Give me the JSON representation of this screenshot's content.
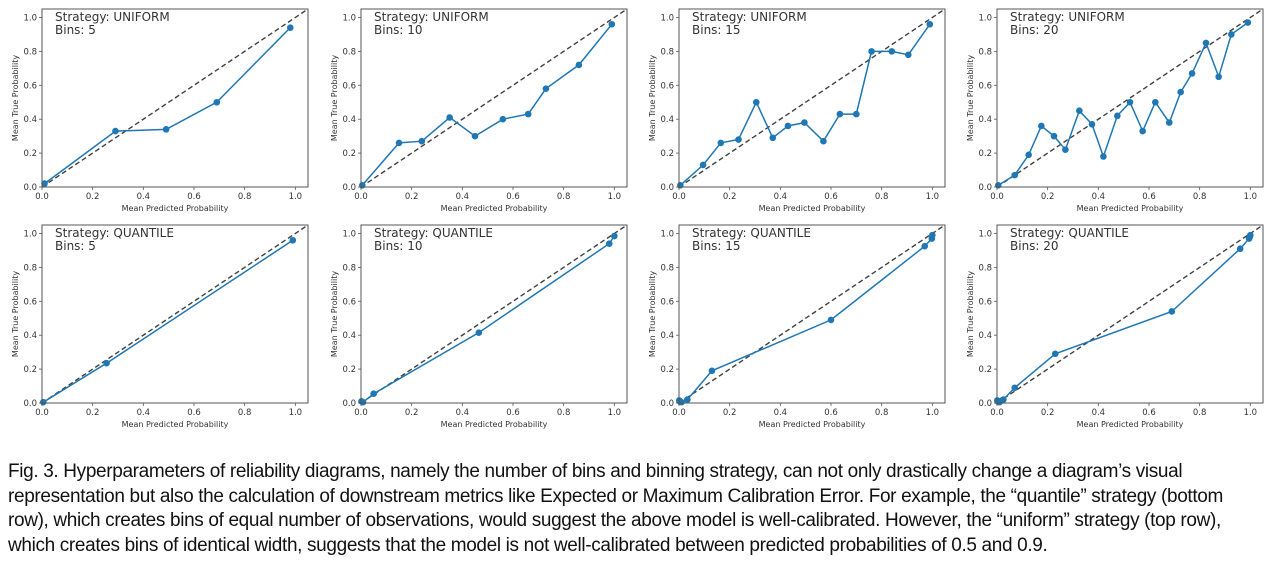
{
  "figure": {
    "caption": "Fig. 3. Hyperparameters of reliability diagrams, namely the number of bins and binning strategy, can not only drastically change a diagram’s visual representation but also the calculation of downstream metrics like Expected or Maximum Calibration Error. For example, the “quantile” strategy (bottom row), which creates bins of equal number of observations, would suggest the above model is well-calibrated. However, the “uniform” strategy (top row), which creates bins of identical width, suggests that the model is not well-calibrated between predicted probabilities of 0.5 and 0.9."
  },
  "colors": {
    "series": "#1f77b4",
    "reference_line": "#404040",
    "axes": "#555555"
  },
  "chart_data": [
    {
      "type": "line",
      "title": "Strategy: UNIFORM",
      "subtitle": "Bins: 5",
      "xlabel": "Mean Predicted Probability",
      "ylabel": "Mean True Probability",
      "xlim": [
        0,
        1.05
      ],
      "ylim": [
        0,
        1.05
      ],
      "xticks": [
        "0.0",
        "0.2",
        "0.4",
        "0.6",
        "0.8",
        "1.0"
      ],
      "yticks": [
        "0.0",
        "0.2",
        "0.4",
        "0.6",
        "0.8",
        "1.0"
      ],
      "reference": "perfect calibration (y = x, dashed)",
      "grid": false,
      "series": [
        {
          "name": "calibration",
          "x": [
            0.01,
            0.29,
            0.49,
            0.69,
            0.98
          ],
          "y": [
            0.02,
            0.33,
            0.34,
            0.5,
            0.94
          ]
        }
      ]
    },
    {
      "type": "line",
      "title": "Strategy: UNIFORM",
      "subtitle": "Bins: 10",
      "xlabel": "Mean Predicted Probability",
      "ylabel": "Mean True Probability",
      "xlim": [
        0,
        1.05
      ],
      "ylim": [
        0,
        1.05
      ],
      "xticks": [
        "0.0",
        "0.2",
        "0.4",
        "0.6",
        "0.8",
        "1.0"
      ],
      "yticks": [
        "0.0",
        "0.2",
        "0.4",
        "0.6",
        "0.8",
        "1.0"
      ],
      "reference": "perfect calibration (y = x, dashed)",
      "grid": false,
      "series": [
        {
          "name": "calibration",
          "x": [
            0.005,
            0.15,
            0.24,
            0.35,
            0.45,
            0.56,
            0.66,
            0.73,
            0.86,
            0.99
          ],
          "y": [
            0.01,
            0.26,
            0.27,
            0.41,
            0.3,
            0.4,
            0.43,
            0.58,
            0.72,
            0.96
          ]
        }
      ]
    },
    {
      "type": "line",
      "title": "Strategy: UNIFORM",
      "subtitle": "Bins: 15",
      "xlabel": "Mean Predicted Probability",
      "ylabel": "Mean True Probability",
      "xlim": [
        0,
        1.05
      ],
      "ylim": [
        0,
        1.05
      ],
      "xticks": [
        "0.0",
        "0.2",
        "0.4",
        "0.6",
        "0.8",
        "1.0"
      ],
      "yticks": [
        "0.0",
        "0.2",
        "0.4",
        "0.6",
        "0.8",
        "1.0"
      ],
      "reference": "perfect calibration (y = x, dashed)",
      "grid": false,
      "series": [
        {
          "name": "calibration",
          "x": [
            0.005,
            0.095,
            0.165,
            0.235,
            0.305,
            0.37,
            0.43,
            0.495,
            0.57,
            0.635,
            0.7,
            0.76,
            0.84,
            0.905,
            0.99
          ],
          "y": [
            0.01,
            0.13,
            0.26,
            0.28,
            0.5,
            0.29,
            0.36,
            0.38,
            0.27,
            0.43,
            0.43,
            0.8,
            0.8,
            0.78,
            0.96
          ]
        }
      ]
    },
    {
      "type": "line",
      "title": "Strategy: UNIFORM",
      "subtitle": "Bins: 20",
      "xlabel": "Mean Predicted Probability",
      "ylabel": "Mean True Probability",
      "xlim": [
        0,
        1.05
      ],
      "ylim": [
        0,
        1.05
      ],
      "xticks": [
        "0.0",
        "0.2",
        "0.4",
        "0.6",
        "0.8",
        "1.0"
      ],
      "yticks": [
        "0.0",
        "0.2",
        "0.4",
        "0.6",
        "0.8",
        "1.0"
      ],
      "reference": "perfect calibration (y = x, dashed)",
      "grid": false,
      "series": [
        {
          "name": "calibration",
          "x": [
            0.005,
            0.07,
            0.125,
            0.175,
            0.225,
            0.27,
            0.325,
            0.375,
            0.42,
            0.475,
            0.525,
            0.575,
            0.625,
            0.68,
            0.725,
            0.77,
            0.825,
            0.875,
            0.925,
            0.99
          ],
          "y": [
            0.01,
            0.07,
            0.19,
            0.36,
            0.3,
            0.22,
            0.45,
            0.37,
            0.18,
            0.42,
            0.5,
            0.33,
            0.5,
            0.38,
            0.56,
            0.67,
            0.85,
            0.65,
            0.9,
            0.97
          ]
        }
      ]
    },
    {
      "type": "line",
      "title": "Strategy: QUANTILE",
      "subtitle": "Bins: 5",
      "xlabel": "Mean Predicted Probability",
      "ylabel": "Mean True Probability",
      "xlim": [
        0,
        1.05
      ],
      "ylim": [
        0,
        1.05
      ],
      "xticks": [
        "0.0",
        "0.2",
        "0.4",
        "0.6",
        "0.8",
        "1.0"
      ],
      "yticks": [
        "0.0",
        "0.2",
        "0.4",
        "0.6",
        "0.8",
        "1.0"
      ],
      "reference": "perfect calibration (y = x, dashed)",
      "grid": false,
      "series": [
        {
          "name": "calibration",
          "x": [
            0.005,
            0.255,
            0.99
          ],
          "y": [
            0.005,
            0.235,
            0.96
          ]
        }
      ]
    },
    {
      "type": "line",
      "title": "Strategy: QUANTILE",
      "subtitle": "Bins: 10",
      "xlabel": "Mean Predicted Probability",
      "ylabel": "Mean True Probability",
      "xlim": [
        0,
        1.05
      ],
      "ylim": [
        0,
        1.05
      ],
      "xticks": [
        "0.0",
        "0.2",
        "0.4",
        "0.6",
        "0.8",
        "1.0"
      ],
      "yticks": [
        "0.0",
        "0.2",
        "0.4",
        "0.6",
        "0.8",
        "1.0"
      ],
      "reference": "perfect calibration (y = x, dashed)",
      "grid": false,
      "series": [
        {
          "name": "calibration",
          "x": [
            0.002,
            0.008,
            0.05,
            0.465,
            0.98,
            1.0
          ],
          "y": [
            0.01,
            0.005,
            0.055,
            0.415,
            0.94,
            0.985
          ]
        }
      ]
    },
    {
      "type": "line",
      "title": "Strategy: QUANTILE",
      "subtitle": "Bins: 15",
      "xlabel": "Mean Predicted Probability",
      "ylabel": "Mean True Probability",
      "xlim": [
        0,
        1.05
      ],
      "ylim": [
        0,
        1.05
      ],
      "xticks": [
        "0.0",
        "0.2",
        "0.4",
        "0.6",
        "0.8",
        "1.0"
      ],
      "yticks": [
        "0.0",
        "0.2",
        "0.4",
        "0.6",
        "0.8",
        "1.0"
      ],
      "reference": "perfect calibration (y = x, dashed)",
      "grid": false,
      "series": [
        {
          "name": "calibration",
          "x": [
            0.001,
            0.004,
            0.01,
            0.033,
            0.13,
            0.6,
            0.97,
            0.998,
            1.0
          ],
          "y": [
            0.015,
            0.008,
            0.005,
            0.02,
            0.19,
            0.49,
            0.925,
            0.97,
            0.99
          ]
        }
      ]
    },
    {
      "type": "line",
      "title": "Strategy: QUANTILE",
      "subtitle": "Bins: 20",
      "xlabel": "Mean Predicted Probability",
      "ylabel": "Mean True Probability",
      "xlim": [
        0,
        1.05
      ],
      "ylim": [
        0,
        1.05
      ],
      "xticks": [
        "0.0",
        "0.2",
        "0.4",
        "0.6",
        "0.8",
        "1.0"
      ],
      "yticks": [
        "0.0",
        "0.2",
        "0.4",
        "0.6",
        "0.8",
        "1.0"
      ],
      "reference": "perfect calibration (y = x, dashed)",
      "grid": false,
      "series": [
        {
          "name": "calibration",
          "x": [
            0.001,
            0.004,
            0.01,
            0.02,
            0.025,
            0.07,
            0.23,
            0.69,
            0.96,
            0.995,
            0.998,
            1.0
          ],
          "y": [
            0.015,
            0.008,
            0.005,
            0.015,
            0.02,
            0.09,
            0.29,
            0.54,
            0.91,
            0.97,
            0.98,
            0.99
          ]
        }
      ]
    }
  ]
}
